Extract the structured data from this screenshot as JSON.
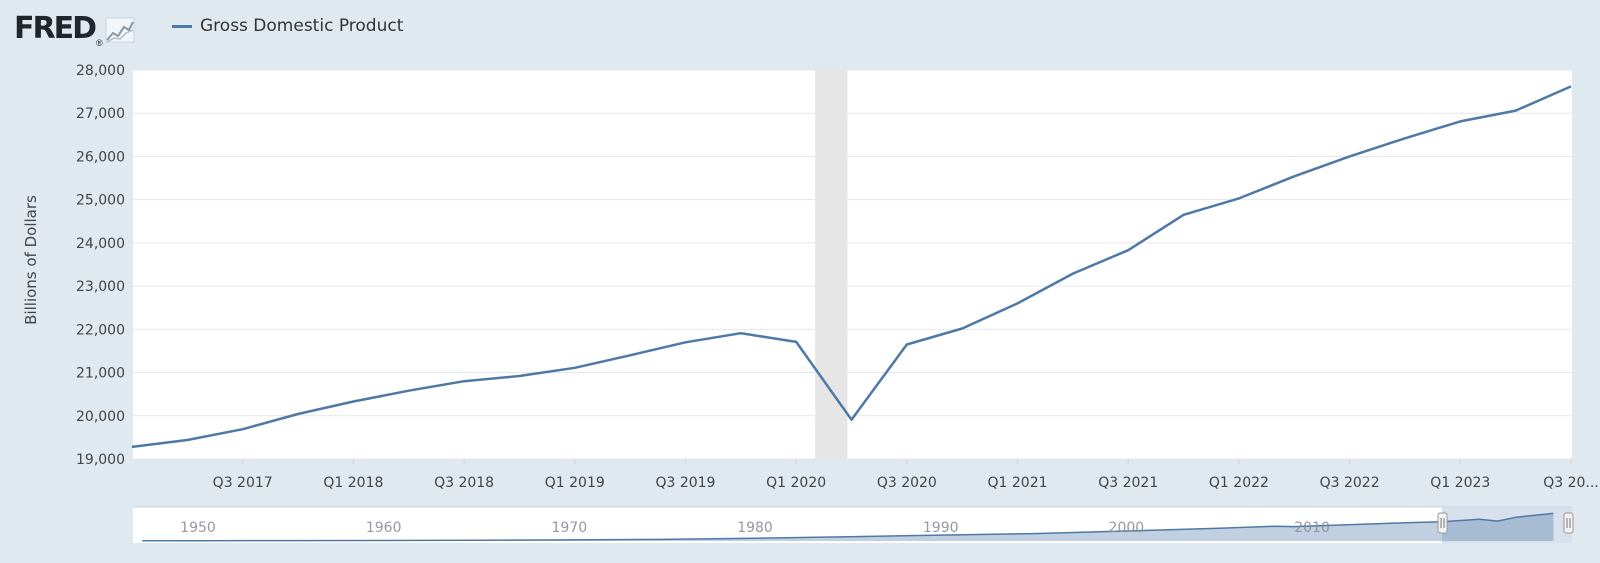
{
  "header": {
    "logo_text": "FRED",
    "logo_mark": "®",
    "logo_icon": "chart-line-icon",
    "legend_label": "Gross Domestic Product",
    "legend_color": "#4e79a7"
  },
  "chart_data": {
    "type": "line",
    "title": "",
    "xlabel": "",
    "ylabel": "Billions of Dollars",
    "ylim": [
      19000,
      28000
    ],
    "yticks": [
      19000,
      20000,
      21000,
      22000,
      23000,
      24000,
      25000,
      26000,
      27000,
      28000
    ],
    "ytick_labels": [
      "19,000",
      "20,000",
      "21,000",
      "22,000",
      "23,000",
      "24,000",
      "25,000",
      "26,000",
      "27,000",
      "28,000"
    ],
    "grid": true,
    "line_color": "#4e79a7",
    "recession_shading": {
      "from": "Q1 2020",
      "to": "Q2 2020",
      "color": "#e6e6e6"
    },
    "x": [
      "Q1 2017",
      "Q2 2017",
      "Q3 2017",
      "Q4 2017",
      "Q1 2018",
      "Q2 2018",
      "Q3 2018",
      "Q4 2018",
      "Q1 2019",
      "Q2 2019",
      "Q3 2019",
      "Q4 2019",
      "Q1 2020",
      "Q2 2020",
      "Q3 2020",
      "Q4 2020",
      "Q1 2021",
      "Q2 2021",
      "Q3 2021",
      "Q4 2021",
      "Q1 2022",
      "Q2 2022",
      "Q3 2022",
      "Q4 2022",
      "Q1 2023",
      "Q2 2023",
      "Q3 2023"
    ],
    "series": [
      {
        "name": "Gross Domestic Product",
        "values": [
          19280,
          19440,
          19690,
          20040,
          20330,
          20580,
          20800,
          20920,
          21110,
          21400,
          21700,
          21910,
          21710,
          19910,
          21650,
          22020,
          22600,
          23290,
          23830,
          24650,
          25030,
          25540,
          26000,
          26420,
          26810,
          27060,
          27620
        ]
      }
    ],
    "xtick_labels": [
      {
        "at": "Q3 2017",
        "label": "Q3 2017"
      },
      {
        "at": "Q1 2018",
        "label": "Q1 2018"
      },
      {
        "at": "Q3 2018",
        "label": "Q3 2018"
      },
      {
        "at": "Q1 2019",
        "label": "Q1 2019"
      },
      {
        "at": "Q3 2019",
        "label": "Q3 2019"
      },
      {
        "at": "Q1 2020",
        "label": "Q1 2020"
      },
      {
        "at": "Q3 2020",
        "label": "Q3 2020"
      },
      {
        "at": "Q1 2021",
        "label": "Q1 2021"
      },
      {
        "at": "Q3 2021",
        "label": "Q3 2021"
      },
      {
        "at": "Q1 2022",
        "label": "Q1 2022"
      },
      {
        "at": "Q3 2022",
        "label": "Q3 2022"
      },
      {
        "at": "Q1 2023",
        "label": "Q1 2023"
      },
      {
        "at": "Q3 2023",
        "label": "Q3 20..."
      }
    ]
  },
  "navigator": {
    "year_labels": [
      "1950",
      "1960",
      "1970",
      "1980",
      "1990",
      "2000",
      "2010"
    ],
    "year_range": [
      1946.5,
      2024.0
    ],
    "history_values": [
      [
        1947,
        243
      ],
      [
        1950,
        293
      ],
      [
        1955,
        426
      ],
      [
        1960,
        542
      ],
      [
        1965,
        719
      ],
      [
        1970,
        1073
      ],
      [
        1975,
        1637
      ],
      [
        1980,
        2797
      ],
      [
        1985,
        4339
      ],
      [
        1990,
        5872
      ],
      [
        1995,
        7415
      ],
      [
        2000,
        10002
      ],
      [
        2005,
        12762
      ],
      [
        2008,
        14769
      ],
      [
        2009,
        14356
      ],
      [
        2010,
        15000
      ],
      [
        2015,
        18238
      ],
      [
        2017,
        19280
      ],
      [
        2019,
        21700
      ],
      [
        2020,
        19910
      ],
      [
        2021,
        23830
      ],
      [
        2023,
        27620
      ]
    ],
    "selection": {
      "from": "Q1 2017",
      "to": "Q3 2023"
    }
  }
}
